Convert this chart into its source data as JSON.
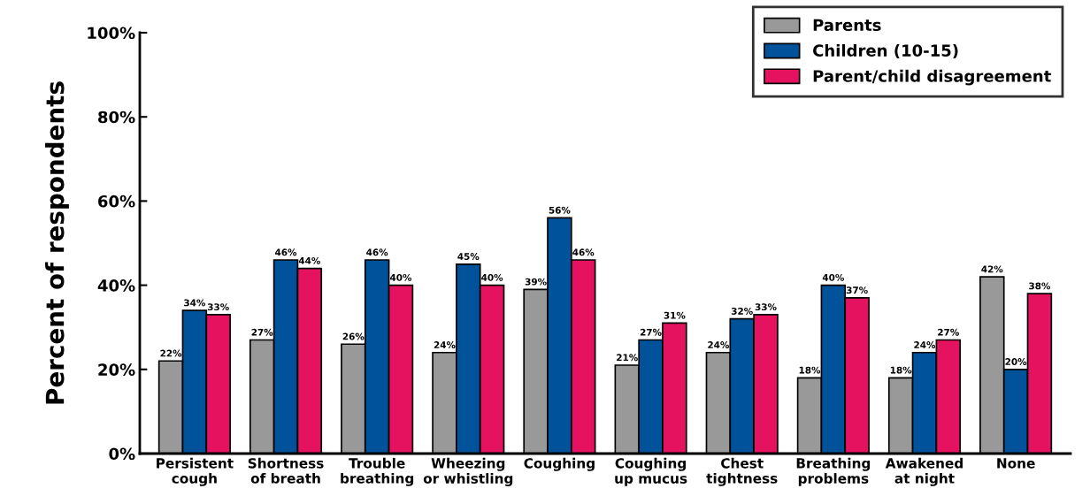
{
  "chart_data": {
    "type": "bar",
    "ylabel": "Percent of respondents",
    "categories": [
      "Persistent\ncough",
      "Shortness\nof breath",
      "Trouble\nbreathing",
      "Wheezing\nor whistling",
      "Coughing",
      "Coughing\nup mucus",
      "Chest\ntightness",
      "Breathing\nproblems",
      "Awakened\nat night",
      "None"
    ],
    "series": [
      {
        "name": "Parents",
        "color": "#999999",
        "values": [
          22,
          27,
          26,
          24,
          39,
          21,
          24,
          18,
          18,
          42
        ],
        "value_labels": [
          "22%",
          "27%",
          "26%",
          "24%",
          "39%",
          "21%",
          "24%",
          "18%",
          "18%",
          "42%"
        ]
      },
      {
        "name": "Children (10-15)",
        "color": "#00529b",
        "values": [
          34,
          46,
          46,
          45,
          56,
          27,
          32,
          40,
          24,
          20
        ],
        "value_labels": [
          "34%",
          "46%",
          "46%",
          "45%",
          "56%",
          "27%",
          "32%",
          "40%",
          "24%",
          "20%"
        ]
      },
      {
        "name": "Parent/child disagreement",
        "color": "#e4125f",
        "values": [
          33,
          44,
          40,
          40,
          46,
          31,
          33,
          37,
          27,
          38
        ],
        "value_labels": [
          "33%",
          "44%",
          "40%",
          "40%",
          "46%",
          "31%",
          "33%",
          "37%",
          "27%",
          "38%"
        ]
      }
    ],
    "ylim": [
      0,
      100
    ],
    "yticks": [
      {
        "value": 0,
        "label": "0%"
      },
      {
        "value": 20,
        "label": "20%"
      },
      {
        "value": 40,
        "label": "40%"
      },
      {
        "value": 60,
        "label": "60%"
      },
      {
        "value": 80,
        "label": "80%"
      },
      {
        "value": 100,
        "label": "100%"
      }
    ],
    "grid": false,
    "legend": "top right"
  }
}
